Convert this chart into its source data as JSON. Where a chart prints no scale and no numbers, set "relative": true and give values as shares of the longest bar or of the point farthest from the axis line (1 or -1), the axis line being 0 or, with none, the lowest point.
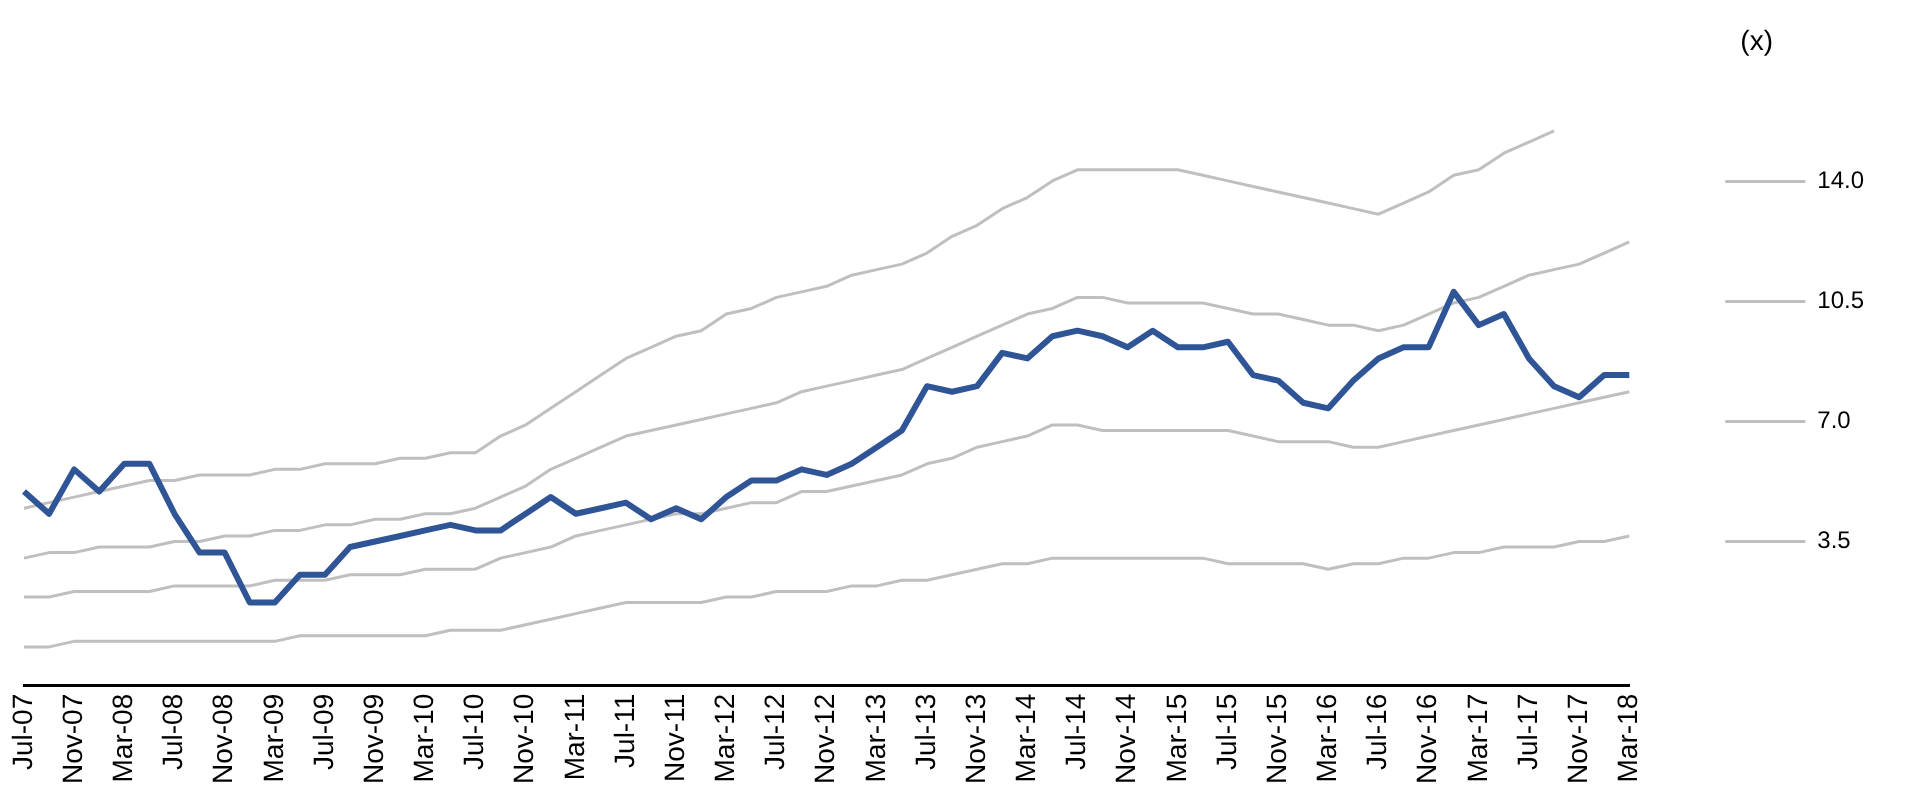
{
  "chart_data": {
    "type": "line",
    "relative": true,
    "legend": "right",
    "legend_title": "(x)",
    "marker": "none",
    "line_style": "solid",
    "grid": false,
    "categories": [
      "Jul-07",
      null,
      "Nov-07",
      null,
      "Mar-08",
      null,
      "Jul-08",
      null,
      "Nov-08",
      null,
      "Mar-09",
      null,
      "Jul-09",
      null,
      "Nov-09",
      null,
      "Mar-10",
      null,
      "Jul-10",
      null,
      "Nov-10",
      null,
      "Mar-11",
      null,
      "Jul-11",
      null,
      "Nov-11",
      null,
      "Mar-12",
      null,
      "Jul-12",
      null,
      "Nov-12",
      null,
      "Mar-13",
      null,
      "Jul-13",
      null,
      "Nov-13",
      null,
      "Mar-14",
      null,
      "Jul-14",
      null,
      "Nov-14",
      null,
      "Mar-15",
      null,
      "Jul-15",
      null,
      "Nov-15",
      null,
      "Mar-16",
      null,
      "Jul-16",
      null,
      "Nov-16",
      null,
      "Mar-17",
      null,
      "Jul-17",
      null,
      "Nov-17",
      null,
      "Mar-18"
    ],
    "series": [
      {
        "color": "#2f5597",
        "values": [
          0.35,
          0.31,
          0.39,
          0.35,
          0.4,
          0.4,
          0.31,
          0.24,
          0.24,
          0.15,
          0.15,
          0.2,
          0.2,
          0.25,
          0.26,
          0.27,
          0.28,
          0.29,
          0.28,
          0.28,
          0.31,
          0.34,
          0.31,
          0.32,
          0.33,
          0.3,
          0.32,
          0.3,
          0.34,
          0.37,
          0.37,
          0.39,
          0.38,
          0.4,
          0.43,
          0.46,
          0.54,
          0.53,
          0.54,
          0.6,
          0.59,
          0.63,
          0.64,
          0.63,
          0.61,
          0.64,
          0.61,
          0.61,
          0.62,
          0.56,
          0.55,
          0.51,
          0.5,
          0.55,
          0.59,
          0.61,
          0.61,
          0.71,
          0.65,
          0.67,
          0.59,
          0.54,
          0.52,
          0.56,
          0.56
        ]
      },
      {
        "name": "14.0",
        "color": "#bfbfbf",
        "values": [
          0.32,
          0.33,
          0.34,
          0.35,
          0.36,
          0.37,
          0.37,
          0.38,
          0.38,
          0.38,
          0.39,
          0.39,
          0.4,
          0.4,
          0.4,
          0.41,
          0.41,
          0.42,
          0.42,
          0.45,
          0.47,
          0.5,
          0.53,
          0.56,
          0.59,
          0.61,
          0.63,
          0.64,
          0.67,
          0.68,
          0.7,
          0.71,
          0.72,
          0.74,
          0.75,
          0.76,
          0.78,
          0.81,
          0.83,
          0.86,
          0.88,
          0.91,
          0.93,
          0.93,
          0.93,
          0.93,
          0.93,
          0.92,
          0.91,
          0.9,
          0.89,
          0.88,
          0.87,
          0.86,
          0.85,
          0.87,
          0.89,
          0.92,
          0.93,
          0.96,
          0.98,
          1,
          null,
          null,
          null
        ]
      },
      {
        "name": "10.5",
        "color": "#bfbfbf",
        "values": [
          0.23,
          0.24,
          0.24,
          0.25,
          0.25,
          0.25,
          0.26,
          0.26,
          0.27,
          0.27,
          0.28,
          0.28,
          0.29,
          0.29,
          0.3,
          0.3,
          0.31,
          0.31,
          0.32,
          0.34,
          0.36,
          0.39,
          0.41,
          0.43,
          0.45,
          0.46,
          0.47,
          0.48,
          0.49,
          0.5,
          0.51,
          0.53,
          0.54,
          0.55,
          0.56,
          0.57,
          0.59,
          0.61,
          0.63,
          0.65,
          0.67,
          0.68,
          0.7,
          0.7,
          0.69,
          0.69,
          0.69,
          0.69,
          0.68,
          0.67,
          0.67,
          0.66,
          0.65,
          0.65,
          0.64,
          0.65,
          0.67,
          0.69,
          0.7,
          0.72,
          0.74,
          0.75,
          0.76,
          0.78,
          0.8
        ]
      },
      {
        "name": "7.0",
        "color": "#bfbfbf",
        "values": [
          0.16,
          0.16,
          0.17,
          0.17,
          0.17,
          0.17,
          0.18,
          0.18,
          0.18,
          0.18,
          0.19,
          0.19,
          0.19,
          0.2,
          0.2,
          0.2,
          0.21,
          0.21,
          0.21,
          0.23,
          0.24,
          0.25,
          0.27,
          0.28,
          0.29,
          0.3,
          0.31,
          0.31,
          0.32,
          0.33,
          0.33,
          0.35,
          0.35,
          0.36,
          0.37,
          0.38,
          0.4,
          0.41,
          0.43,
          0.44,
          0.45,
          0.47,
          0.47,
          0.46,
          0.46,
          0.46,
          0.46,
          0.46,
          0.46,
          0.45,
          0.44,
          0.44,
          0.44,
          0.43,
          0.43,
          0.44,
          0.45,
          0.46,
          0.47,
          0.48,
          0.49,
          0.5,
          0.51,
          0.52,
          0.53
        ]
      },
      {
        "name": "3.5",
        "color": "#bfbfbf",
        "values": [
          0.07,
          0.07,
          0.08,
          0.08,
          0.08,
          0.08,
          0.08,
          0.08,
          0.08,
          0.08,
          0.08,
          0.09,
          0.09,
          0.09,
          0.09,
          0.09,
          0.09,
          0.1,
          0.1,
          0.1,
          0.11,
          0.12,
          0.13,
          0.14,
          0.15,
          0.15,
          0.15,
          0.15,
          0.16,
          0.16,
          0.17,
          0.17,
          0.17,
          0.18,
          0.18,
          0.19,
          0.19,
          0.2,
          0.21,
          0.22,
          0.22,
          0.23,
          0.23,
          0.23,
          0.23,
          0.23,
          0.23,
          0.23,
          0.22,
          0.22,
          0.22,
          0.22,
          0.21,
          0.22,
          0.22,
          0.23,
          0.23,
          0.24,
          0.24,
          0.25,
          0.25,
          0.25,
          0.26,
          0.26,
          0.27
        ]
      }
    ]
  }
}
